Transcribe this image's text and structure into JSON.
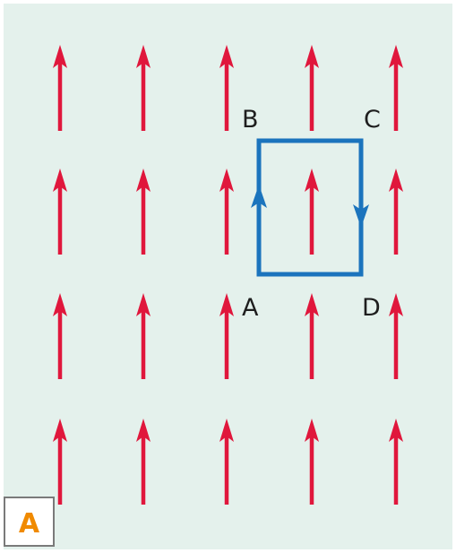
{
  "figure": {
    "panel_label": "A",
    "points": {
      "a": "A",
      "b": "B",
      "c": "C",
      "d": "D"
    },
    "field_direction": "up",
    "field_grid": {
      "columns": 5,
      "rows": 4
    },
    "loop_direction": "clockwise",
    "colors": {
      "background": "#e4f1ec",
      "field_arrow": "#e0173c",
      "loop": "#1b74bd",
      "panel_label": "#f08a00",
      "label_text": "#1e1e1e"
    }
  }
}
